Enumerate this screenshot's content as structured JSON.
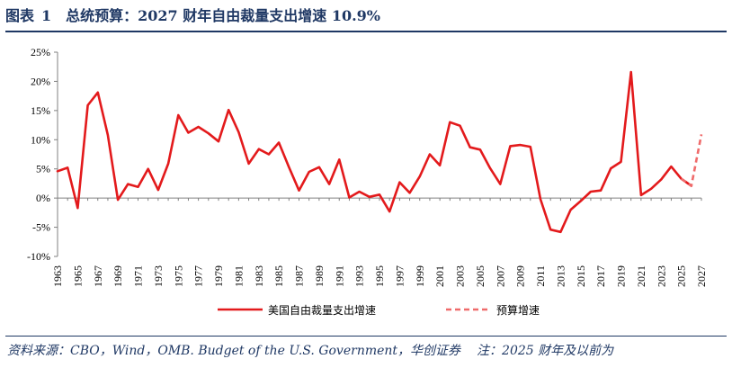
{
  "header": {
    "figure_label": "图表",
    "figure_number": "1",
    "title": "总统预算：2027 财年自由裁量支出增速 10.9%"
  },
  "footer": {
    "source": "资料来源：CBO，Wind，OMB. Budget of the U.S. Government，华创证券",
    "note": "注：2025 财年及以前为"
  },
  "colors": {
    "series": "#e31a1c",
    "forecast": "#ef6b6b",
    "title": "#1f3864",
    "axis": "#808080"
  },
  "chart_data": {
    "type": "line",
    "y_ticks": [
      "25%",
      "20%",
      "15%",
      "10%",
      "5%",
      "0%",
      "-5%",
      "-10%"
    ],
    "y_tick_values": [
      25,
      20,
      15,
      10,
      5,
      0,
      -5,
      -10
    ],
    "ylim": [
      -10,
      25
    ],
    "xlim": [
      1963,
      2027
    ],
    "x_ticks": [
      "1963",
      "1965",
      "1967",
      "1969",
      "1971",
      "1973",
      "1975",
      "1977",
      "1979",
      "1981",
      "1983",
      "1985",
      "1987",
      "1989",
      "1991",
      "1993",
      "1995",
      "1997",
      "1999",
      "2001",
      "2003",
      "2005",
      "2007",
      "2009",
      "2011",
      "2013",
      "2015",
      "2017",
      "2019",
      "2021",
      "2023",
      "2025",
      "2027"
    ],
    "series": [
      {
        "name": "美国自由裁量支出增速",
        "style": "solid",
        "x": [
          1963,
          1964,
          1965,
          1966,
          1967,
          1968,
          1969,
          1970,
          1971,
          1972,
          1973,
          1974,
          1975,
          1976,
          1977,
          1978,
          1979,
          1980,
          1981,
          1982,
          1983,
          1984,
          1985,
          1986,
          1987,
          1988,
          1989,
          1990,
          1991,
          1992,
          1993,
          1994,
          1995,
          1996,
          1997,
          1998,
          1999,
          2000,
          2001,
          2002,
          2003,
          2004,
          2005,
          2006,
          2007,
          2008,
          2009,
          2010,
          2011,
          2012,
          2013,
          2014,
          2015,
          2016,
          2017,
          2018,
          2019,
          2020,
          2021,
          2022,
          2023,
          2024,
          2025,
          2026
        ],
        "values": [
          4.6,
          5.2,
          -1.7,
          15.9,
          18.1,
          10.8,
          -0.3,
          2.4,
          1.9,
          5.0,
          1.4,
          5.9,
          14.2,
          11.2,
          12.2,
          11.1,
          9.7,
          15.1,
          11.3,
          5.9,
          8.4,
          7.5,
          9.5,
          5.3,
          1.3,
          4.5,
          5.3,
          2.4,
          6.6,
          0.1,
          1.1,
          0.2,
          0.6,
          -2.3,
          2.7,
          0.9,
          3.7,
          7.5,
          5.6,
          13.0,
          12.4,
          8.7,
          8.3,
          5.1,
          2.4,
          8.9,
          9.1,
          8.8,
          -0.2,
          -5.4,
          -5.8,
          -2.0,
          -0.5,
          1.1,
          1.3,
          5.1,
          6.2,
          21.6,
          0.5,
          1.6,
          3.2,
          5.4,
          3.3,
          2.1
        ]
      },
      {
        "name": "预算增速",
        "style": "dashed",
        "x": [
          2025,
          2026,
          2027
        ],
        "values": [
          3.3,
          2.1,
          10.9
        ]
      }
    ],
    "legend_position": "bottom",
    "grid": false
  }
}
